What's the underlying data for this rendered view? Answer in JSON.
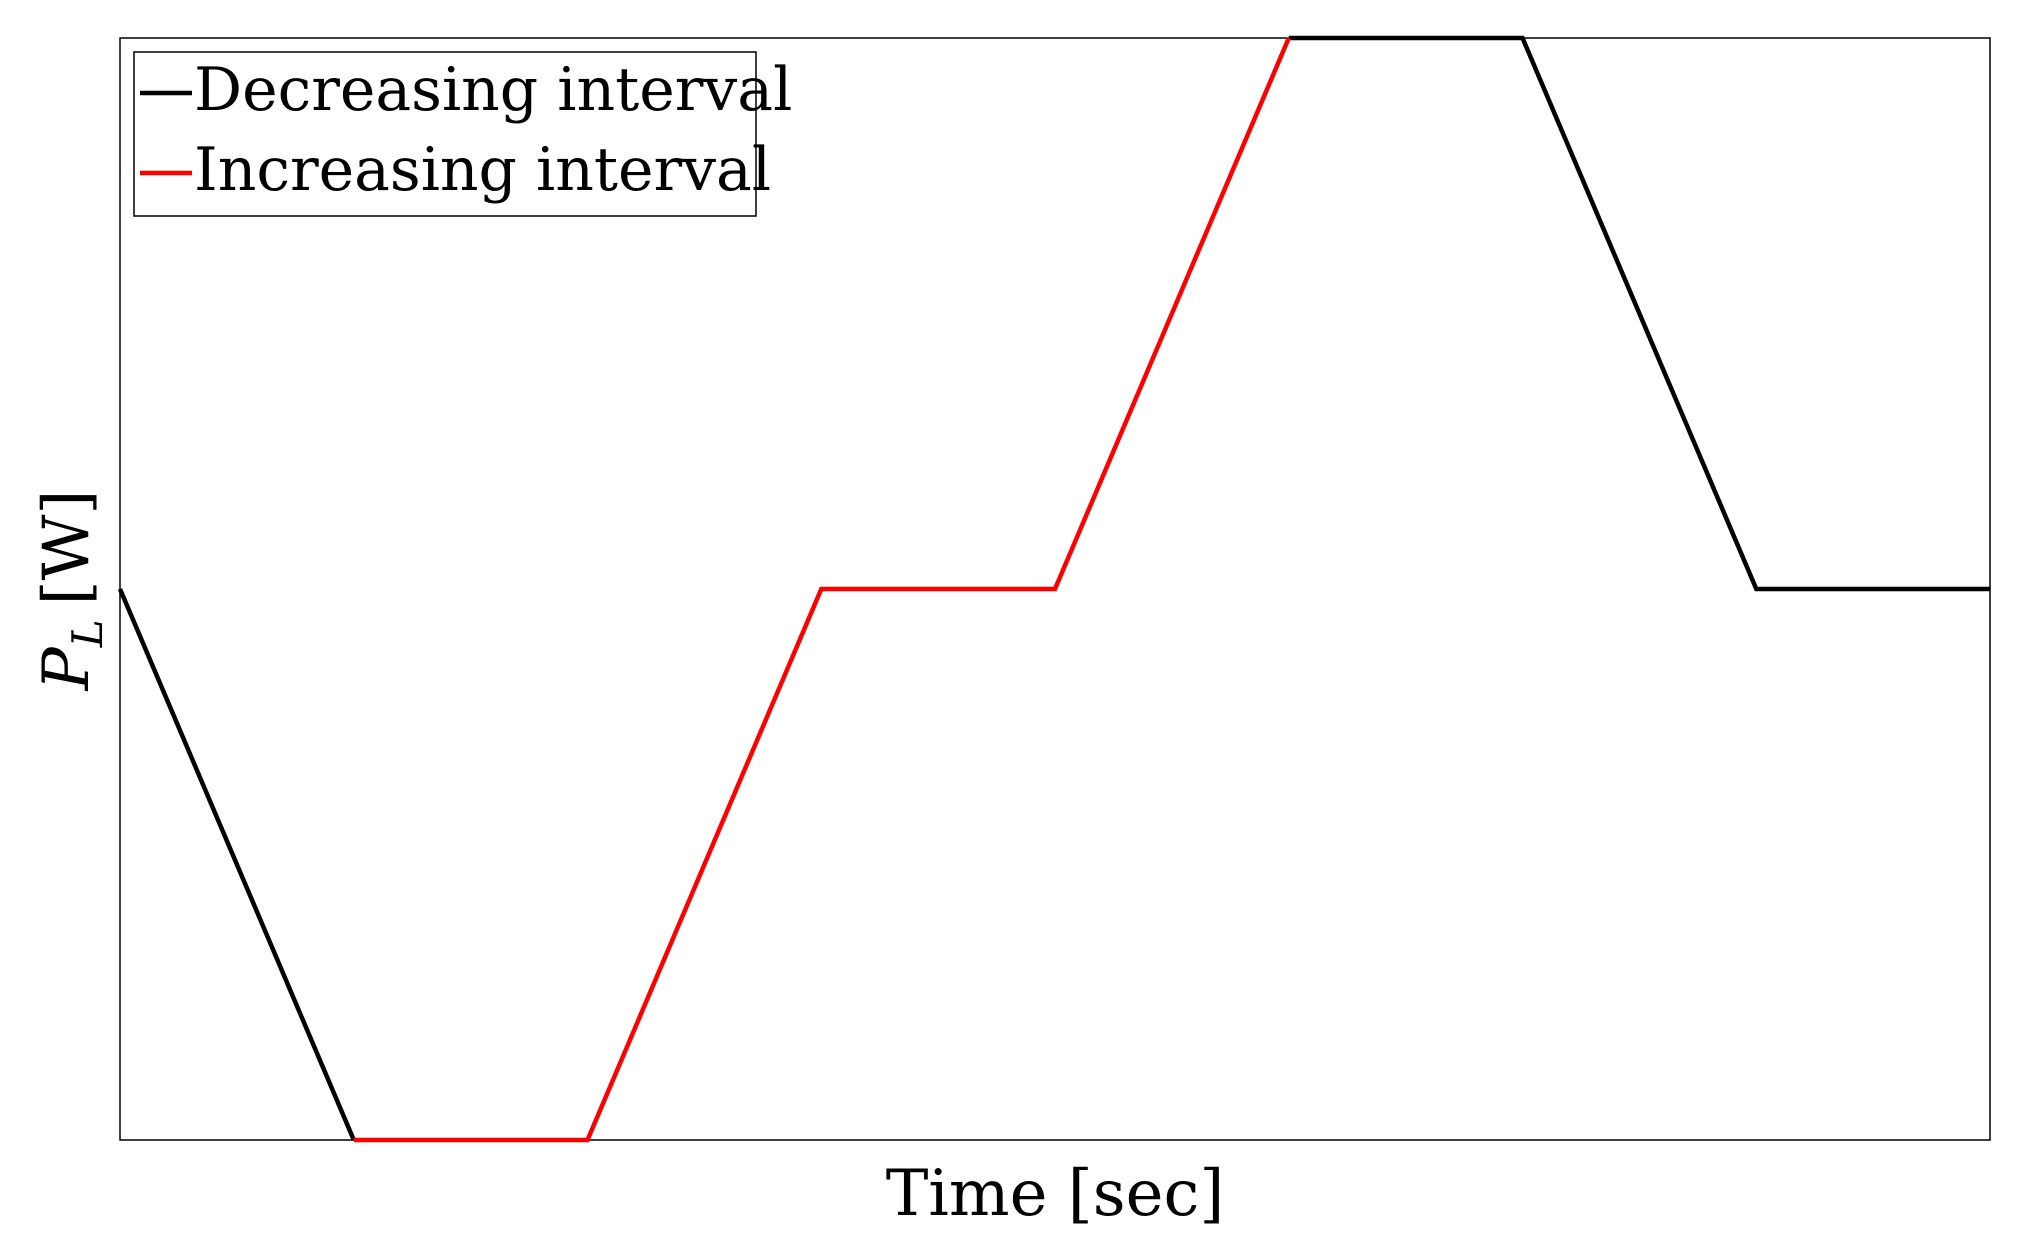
{
  "chart_data": {
    "type": "line",
    "title": "",
    "xlabel": "Time [sec]",
    "ylabel": "P",
    "ylabel_subscript": "L",
    "ylabel_unit": "[W]",
    "xlim": [
      0,
      8
    ],
    "ylim": [
      0,
      2
    ],
    "grid": false,
    "ticks": false,
    "legend_position": "top-left",
    "series": [
      {
        "name": "Decreasing interval",
        "color": "#000000",
        "segments": [
          {
            "x": [
              0,
              1
            ],
            "y": [
              1,
              0
            ]
          },
          {
            "x": [
              5,
              6,
              7,
              8
            ],
            "y": [
              2,
              2,
              1,
              1
            ]
          }
        ]
      },
      {
        "name": "Increasing interval",
        "color": "#ff0000",
        "segments": [
          {
            "x": [
              1,
              2,
              3,
              4,
              5
            ],
            "y": [
              0,
              0,
              1,
              1,
              2
            ]
          }
        ]
      }
    ]
  }
}
